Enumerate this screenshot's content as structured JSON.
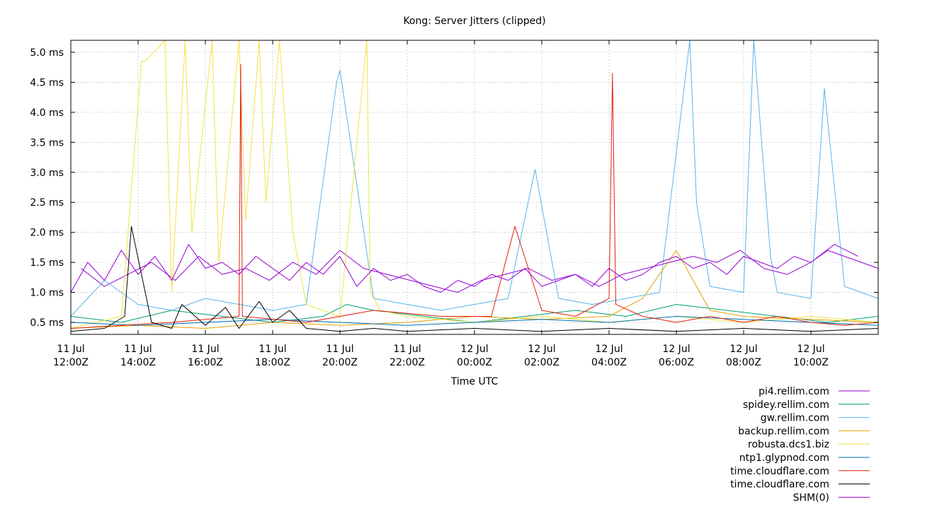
{
  "chart_data": {
    "type": "line",
    "title": "Kong: Server Jitters (clipped)",
    "xlabel": "Time UTC",
    "ylabel": "",
    "xlim": [
      0,
      24
    ],
    "ylim": [
      0.3,
      5.2
    ],
    "y_ticks": [
      {
        "value": 0.5,
        "label": "0.5 ms"
      },
      {
        "value": 1.0,
        "label": "1.0 ms"
      },
      {
        "value": 1.5,
        "label": "1.5 ms"
      },
      {
        "value": 2.0,
        "label": "2.0 ms"
      },
      {
        "value": 2.5,
        "label": "2.5 ms"
      },
      {
        "value": 3.0,
        "label": "3.0 ms"
      },
      {
        "value": 3.5,
        "label": "3.5 ms"
      },
      {
        "value": 4.0,
        "label": "4.0 ms"
      },
      {
        "value": 4.5,
        "label": "4.5 ms"
      },
      {
        "value": 5.0,
        "label": "5.0 ms"
      }
    ],
    "x_ticks": [
      {
        "value": 0,
        "line1": "11 Jul",
        "line2": "12:00Z"
      },
      {
        "value": 2,
        "line1": "11 Jul",
        "line2": "14:00Z"
      },
      {
        "value": 4,
        "line1": "11 Jul",
        "line2": "16:00Z"
      },
      {
        "value": 6,
        "line1": "11 Jul",
        "line2": "18:00Z"
      },
      {
        "value": 8,
        "line1": "11 Jul",
        "line2": "20:00Z"
      },
      {
        "value": 10,
        "line1": "11 Jul",
        "line2": "22:00Z"
      },
      {
        "value": 12,
        "line1": "12 Jul",
        "line2": "00:00Z"
      },
      {
        "value": 14,
        "line1": "12 Jul",
        "line2": "02:00Z"
      },
      {
        "value": 16,
        "line1": "12 Jul",
        "line2": "04:00Z"
      },
      {
        "value": 18,
        "line1": "12 Jul",
        "line2": "06:00Z"
      },
      {
        "value": 20,
        "line1": "12 Jul",
        "line2": "08:00Z"
      },
      {
        "value": 22,
        "line1": "12 Jul",
        "line2": "10:00Z"
      }
    ],
    "grid": true,
    "legend_position": "bottom-right",
    "series": [
      {
        "name": "pi4.rellim.com",
        "color": "#9400d3",
        "x": [
          0.3,
          1.0,
          1.7,
          2.4,
          3.1,
          3.8,
          4.5,
          5.2,
          5.9,
          6.6,
          7.3,
          8.0,
          8.7,
          9.4,
          10.1,
          10.8,
          11.5,
          12.2,
          12.9,
          13.6,
          14.3,
          15.0,
          15.7,
          16.4,
          17.1,
          17.8,
          18.5,
          19.2,
          19.9,
          20.6,
          21.3,
          22.0,
          22.7,
          23.4
        ],
        "values": [
          1.4,
          1.1,
          1.3,
          1.5,
          1.2,
          1.6,
          1.3,
          1.4,
          1.2,
          1.5,
          1.3,
          1.7,
          1.4,
          1.3,
          1.2,
          1.1,
          1.0,
          1.2,
          1.3,
          1.4,
          1.2,
          1.3,
          1.1,
          1.3,
          1.4,
          1.5,
          1.6,
          1.5,
          1.7,
          1.4,
          1.3,
          1.5,
          1.8,
          1.6
        ]
      },
      {
        "name": "spidey.rellim.com",
        "color": "#009e73",
        "x": [
          0,
          1.5,
          3,
          4.5,
          6,
          7.5,
          8.2,
          9,
          10.5,
          12,
          13.5,
          15,
          16.5,
          18,
          19.5,
          21,
          22.5,
          24
        ],
        "values": [
          0.6,
          0.5,
          0.7,
          0.6,
          0.5,
          0.6,
          0.8,
          0.7,
          0.6,
          0.5,
          0.6,
          0.7,
          0.6,
          0.8,
          0.7,
          0.6,
          0.5,
          0.6
        ]
      },
      {
        "name": "gw.rellim.com",
        "color": "#56b4e9",
        "x": [
          0,
          1,
          2,
          3,
          4,
          5,
          6,
          7,
          7.9,
          8.0,
          9,
          10,
          11,
          12,
          13,
          13.8,
          14.5,
          15.5,
          16.5,
          17.5,
          18.4,
          18.6,
          19,
          20,
          20.3,
          20.8,
          21,
          22,
          22.4,
          23,
          24
        ],
        "values": [
          0.6,
          1.2,
          0.8,
          0.7,
          0.9,
          0.8,
          0.7,
          0.8,
          4.5,
          4.7,
          0.9,
          0.8,
          0.7,
          0.8,
          0.9,
          3.05,
          0.9,
          0.8,
          0.9,
          1.0,
          5.2,
          2.5,
          1.1,
          1.0,
          5.2,
          1.6,
          1.0,
          0.9,
          4.4,
          1.1,
          0.9
        ]
      },
      {
        "name": "backup.rellim.com",
        "color": "#e69f00",
        "x": [
          0,
          2,
          4,
          6,
          8,
          10,
          12,
          14,
          16,
          17,
          18,
          19,
          20,
          22,
          24
        ],
        "values": [
          0.4,
          0.45,
          0.4,
          0.5,
          0.45,
          0.5,
          0.6,
          0.55,
          0.6,
          0.9,
          1.7,
          0.7,
          0.6,
          0.55,
          0.5
        ]
      },
      {
        "name": "robusta.dcs1.biz",
        "color": "#f0e442",
        "x": [
          0,
          1.5,
          2.1,
          2.2,
          2.8,
          3.0,
          3.4,
          3.6,
          4.2,
          4.4,
          5.0,
          5.2,
          5.6,
          5.8,
          6.2,
          6.6,
          7.0,
          8.0,
          8.8,
          8.9,
          9.2,
          10,
          12,
          14,
          16,
          18,
          20,
          22,
          24
        ],
        "values": [
          0.4,
          0.6,
          4.85,
          4.85,
          5.2,
          1.0,
          5.2,
          2.0,
          5.2,
          1.5,
          5.2,
          2.2,
          5.2,
          2.5,
          5.2,
          2.0,
          0.8,
          0.6,
          5.2,
          1.0,
          0.7,
          0.6,
          0.5,
          0.6,
          0.5,
          0.6,
          0.5,
          0.6,
          0.5
        ]
      },
      {
        "name": "ntp1.glypnod.com",
        "color": "#0072b2",
        "x": [
          0,
          2,
          4,
          6,
          8,
          10,
          12,
          14,
          16,
          18,
          20,
          22,
          24
        ],
        "values": [
          0.5,
          0.45,
          0.5,
          0.55,
          0.5,
          0.45,
          0.5,
          0.55,
          0.5,
          0.6,
          0.55,
          0.5,
          0.45
        ]
      },
      {
        "name": "time.cloudflare.com",
        "color": "#e51e10",
        "x": [
          0,
          3,
          5.0,
          5.05,
          5.1,
          7,
          9,
          11,
          12.5,
          13.2,
          14,
          15,
          16.0,
          16.1,
          16.2,
          17,
          18,
          19,
          20,
          21,
          22,
          23,
          24
        ],
        "values": [
          0.4,
          0.5,
          0.6,
          4.8,
          0.6,
          0.5,
          0.7,
          0.6,
          0.6,
          2.1,
          0.7,
          0.6,
          0.9,
          4.65,
          0.8,
          0.6,
          0.5,
          0.6,
          0.5,
          0.6,
          0.5,
          0.45,
          0.5
        ]
      },
      {
        "name": "time.cloudflare.com",
        "color": "#000000",
        "x": [
          0,
          1,
          1.6,
          1.8,
          2.4,
          3,
          3.3,
          4,
          4.6,
          5,
          5.6,
          6,
          6.5,
          7,
          8,
          9,
          10,
          12,
          14,
          16,
          18,
          20,
          22,
          24
        ],
        "values": [
          0.35,
          0.4,
          0.6,
          2.1,
          0.5,
          0.4,
          0.8,
          0.45,
          0.75,
          0.4,
          0.85,
          0.5,
          0.7,
          0.4,
          0.35,
          0.4,
          0.35,
          0.4,
          0.35,
          0.4,
          0.35,
          0.4,
          0.35,
          0.4
        ]
      },
      {
        "name": "SHM(0)",
        "color": "#9400d3",
        "x": [
          0,
          0.5,
          1,
          1.5,
          2,
          2.5,
          3,
          3.5,
          4,
          4.5,
          5,
          5.5,
          6,
          6.5,
          7,
          7.5,
          8,
          8.5,
          9,
          9.5,
          10,
          10.5,
          11,
          11.5,
          12,
          12.5,
          13,
          13.5,
          14,
          14.5,
          15,
          15.5,
          16,
          16.5,
          17,
          17.5,
          18,
          18.5,
          19,
          19.5,
          20,
          20.5,
          21,
          21.5,
          22,
          22.5,
          23,
          23.5,
          24
        ],
        "values": [
          1.0,
          1.5,
          1.2,
          1.7,
          1.3,
          1.6,
          1.2,
          1.8,
          1.4,
          1.5,
          1.3,
          1.6,
          1.4,
          1.2,
          1.5,
          1.3,
          1.6,
          1.1,
          1.4,
          1.2,
          1.3,
          1.1,
          1.0,
          1.2,
          1.1,
          1.3,
          1.2,
          1.4,
          1.1,
          1.2,
          1.3,
          1.1,
          1.4,
          1.2,
          1.3,
          1.5,
          1.6,
          1.4,
          1.5,
          1.3,
          1.6,
          1.5,
          1.4,
          1.6,
          1.5,
          1.7,
          1.6,
          1.5,
          1.4
        ]
      }
    ]
  }
}
